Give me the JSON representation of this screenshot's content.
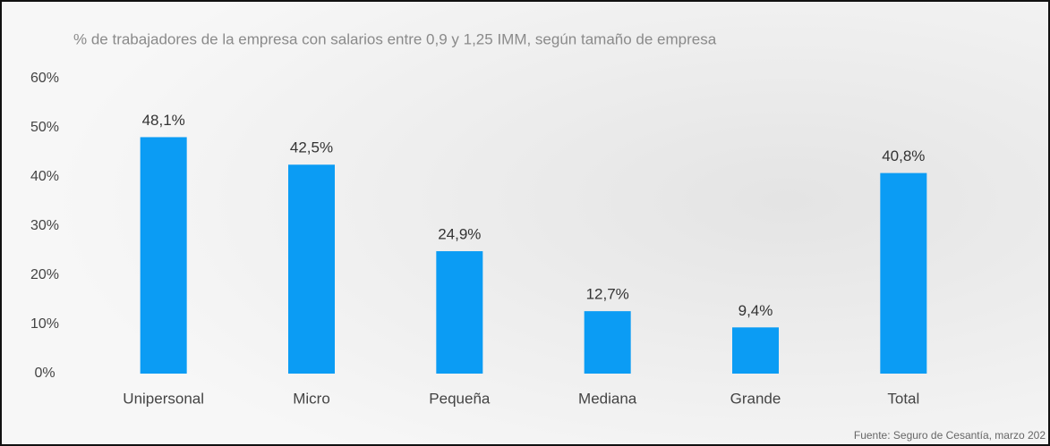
{
  "chart_data": {
    "type": "bar",
    "title": "% de trabajadores de la empresa con salarios entre 0,9 y 1,25 IMM, según tamaño de empresa",
    "source": "Fuente: Seguro de Cesantía, marzo 202",
    "categories": [
      "Unipersonal",
      "Micro",
      "Pequeña",
      "Mediana",
      "Grande",
      "Total"
    ],
    "values": [
      48.1,
      42.5,
      24.9,
      12.7,
      9.4,
      40.8
    ],
    "value_labels": [
      "48,1%",
      "42,5%",
      "24,9%",
      "12,7%",
      "9,4%",
      "40,8%"
    ],
    "color": "#0b9cf4",
    "ylim": [
      0,
      60
    ],
    "yticks": [
      {
        "value": 0,
        "label": "0%"
      },
      {
        "value": 10,
        "label": "10%"
      },
      {
        "value": 20,
        "label": "20%"
      },
      {
        "value": 30,
        "label": "30%"
      },
      {
        "value": 40,
        "label": "40%"
      },
      {
        "value": 50,
        "label": "50%"
      },
      {
        "value": 60,
        "label": "60%"
      }
    ],
    "grid": false
  }
}
